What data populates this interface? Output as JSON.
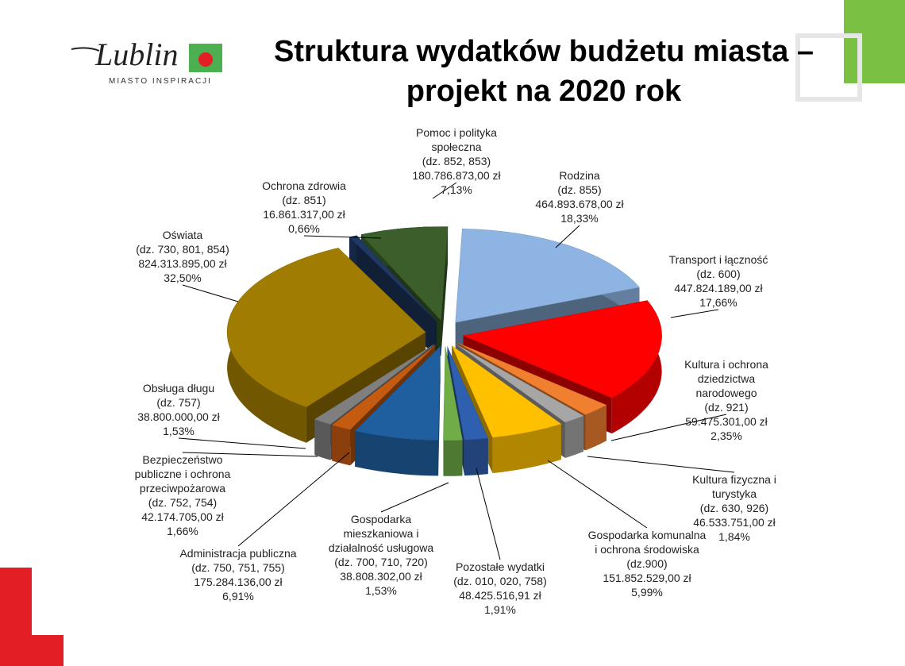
{
  "logo": {
    "name": "Lublin",
    "tagline": "MIASTO INSPIRACJI"
  },
  "chart_data": {
    "type": "pie",
    "title": "Struktura wydatków budżetu miasta – projekt na 2020 rok",
    "categories": [
      "Pomoc i polityka społeczna",
      "Rodzina",
      "Transport i łączność",
      "Kultura i ochrona dziedzictwa narodowego",
      "Kultura fizyczna i turystyka",
      "Gospodarka komunalna i ochrona środowiska",
      "Pozostałe wydatki",
      "Gospodarka mieszkaniowa i działalność usługowa",
      "Administracja publiczna",
      "Bezpieczeństwo publiczne i ochrona przeciwpożarowa",
      "Obsługa długu",
      "Oświata",
      "Ochrona zdrowia"
    ],
    "divisions": [
      "(dz. 852, 853)",
      "(dz. 855)",
      "(dz. 600)",
      "(dz. 921)",
      "(dz. 630, 926)",
      "(dz.900)",
      "(dz. 010, 020, 758)",
      "(dz. 700, 710, 720)",
      "(dz. 750, 751, 755)",
      "(dz. 752, 754)",
      "(dz. 757)",
      "(dz. 730, 801, 854)",
      "(dz. 851)"
    ],
    "amounts": [
      "180.786.873,00 zł",
      "464.893.678,00 zł",
      "447.824.189,00 zł",
      "59.475.301,00 zł",
      "46.533.751,00 zł",
      "151.852.529,00 zł",
      "48.425.516,91 zł",
      "38.808.302,00 zł",
      "175.284.136,00 zł",
      "42.174.705,00 zł",
      "38.800.000,00 zł",
      "824.313.895,00 zł",
      "16.861.317,00 zł"
    ],
    "values": [
      7.13,
      18.33,
      17.66,
      2.35,
      1.84,
      5.99,
      1.91,
      1.53,
      6.91,
      1.66,
      1.53,
      32.5,
      0.66
    ],
    "value_labels": [
      "7,13%",
      "18,33%",
      "17,66%",
      "2,35%",
      "1,84%",
      "5,99%",
      "1,91%",
      "1,53%",
      "6,91%",
      "1,66%",
      "1,53%",
      "32,50%",
      "0,66%"
    ],
    "colors": [
      "#3b5e2b",
      "#8db4e2",
      "#ff0000",
      "#f07f30",
      "#a6a6a6",
      "#ffc000",
      "#2f5faf",
      "#70ad47",
      "#1f5f9f",
      "#c55a11",
      "#7f7f7f",
      "#a07c00",
      "#1f3864"
    ]
  }
}
